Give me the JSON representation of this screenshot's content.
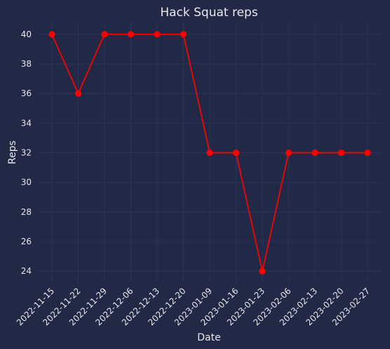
{
  "chart_data": {
    "type": "line",
    "title": "Hack Squat reps",
    "xlabel": "Date",
    "ylabel": "Reps",
    "x": [
      "2022-11-15",
      "2022-11-22",
      "2022-11-29",
      "2022-12-06",
      "2022-12-13",
      "2022-12-20",
      "2023-01-09",
      "2023-01-16",
      "2023-01-23",
      "2023-02-06",
      "2023-02-13",
      "2023-02-20",
      "2023-02-27"
    ],
    "series": [
      {
        "values": [
          40,
          36,
          40,
          40,
          40,
          40,
          32,
          32,
          24,
          32,
          32,
          32,
          32
        ],
        "color": "#FF0000"
      }
    ],
    "yticks": [
      24,
      26,
      28,
      30,
      32,
      34,
      36,
      38,
      40
    ],
    "ylim": [
      23.2,
      40.8
    ],
    "grid": true,
    "background": "#212946",
    "grid_color": "#2A3459",
    "text_color": "#e8e8ee"
  }
}
